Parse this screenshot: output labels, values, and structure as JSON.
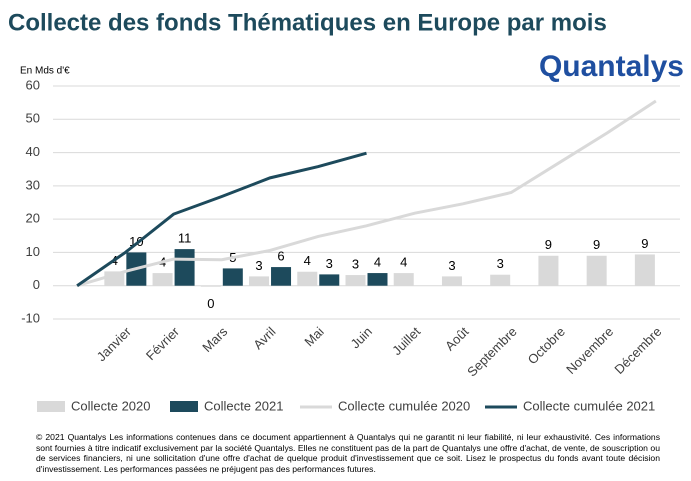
{
  "chart_data": {
    "type": "bar",
    "title": "Collecte des fonds Thématiques en Europe par mois",
    "y_label": "En Mds d'€",
    "logo": "Quantalys",
    "categories": [
      null,
      "Janvier",
      "Février",
      "Mars",
      "Avril",
      "Mai",
      "Juin",
      "Juillet",
      "Août",
      "Septembre",
      "Octobre",
      "Novembre",
      "Décembre"
    ],
    "ylim": [
      -10,
      60
    ],
    "yticks": [
      -10,
      0,
      10,
      20,
      30,
      40,
      50,
      60
    ],
    "grid": true,
    "legend": "bottom",
    "series": [
      {
        "name": "Collecte 2020",
        "type": "bar",
        "color": "#d9d9d9",
        "values": [
          null,
          4.3,
          3.8,
          -0.3,
          2.8,
          4.2,
          3.2,
          3.8,
          2.8,
          3.3,
          9,
          9,
          9.4
        ],
        "value_labels": [
          null,
          "4",
          "4",
          "0",
          "3",
          "4",
          "3",
          "4",
          "3",
          "3",
          "9",
          "9",
          "9"
        ]
      },
      {
        "name": "Collecte 2021",
        "type": "bar",
        "color": "#1d4a5c",
        "values": [
          null,
          10,
          11,
          5.2,
          5.6,
          3.4,
          3.8,
          null,
          null,
          null,
          null,
          null,
          null
        ],
        "value_labels": [
          null,
          "10",
          "11",
          "5",
          "6",
          "3",
          "4",
          null,
          null,
          null,
          null,
          null,
          null
        ]
      },
      {
        "name": "Collecte cumulée 2020",
        "type": "line",
        "color": "#d9d9d9",
        "values": [
          0,
          4.3,
          8,
          7.8,
          10.6,
          14.8,
          18,
          21.8,
          24.6,
          28,
          37,
          46,
          55.5
        ]
      },
      {
        "name": "Collecte cumulée 2021",
        "type": "line",
        "color": "#1d4a5c",
        "values": [
          0,
          10,
          21.5,
          26.8,
          32.4,
          35.8,
          39.8,
          null,
          null,
          null,
          null,
          null,
          null
        ]
      }
    ],
    "footer": "© 2021 Quantalys Les informations contenues dans ce document appartiennent à Quantalys qui ne garantit ni leur fiabilité, ni leur exhaustivité. Ces informations sont fournies à titre indicatif exclusivement par la société Quantalys. Elles ne constituent pas de la part de Quantalys une offre d'achat, de vente, de souscription ou de services financiers, ni une sollicitation d'une offre d'achat de quelque produit d'investissement que ce soit. Lisez le prospectus du fonds avant toute décision d'investissement. Les performances passées ne préjugent pas des performances futures."
  }
}
